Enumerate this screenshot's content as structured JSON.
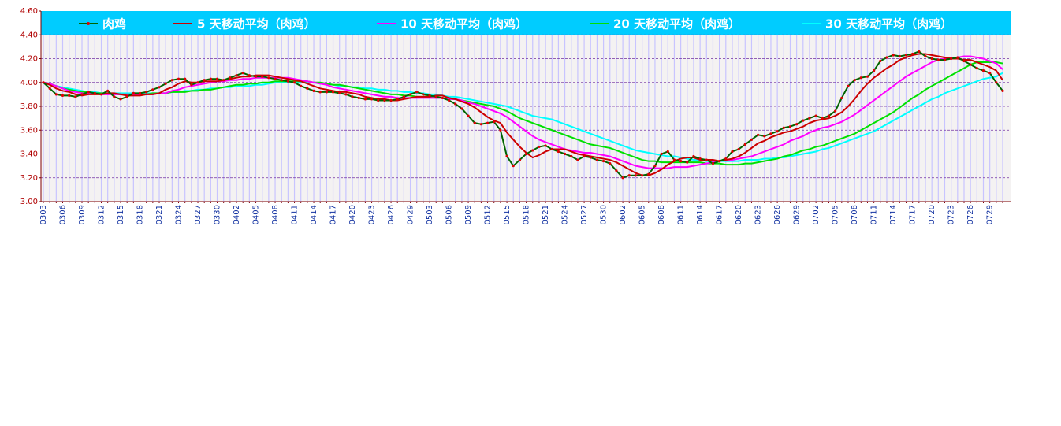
{
  "chart_data": {
    "type": "line",
    "legend": "top",
    "grid": true,
    "ylim": [
      3,
      4.6
    ],
    "yticks": [
      {
        "value": 3,
        "label": "3.00"
      },
      {
        "value": 3.2,
        "label": "3.20"
      },
      {
        "value": 3.4,
        "label": "3.40"
      },
      {
        "value": 3.6,
        "label": "3.60"
      },
      {
        "value": 3.8,
        "label": "3.80"
      },
      {
        "value": 4,
        "label": "4.00"
      },
      {
        "value": 4.2,
        "label": "4.20"
      },
      {
        "value": 4.4,
        "label": "4.40"
      },
      {
        "value": 4.6,
        "label": "4.60"
      }
    ],
    "categories": [
      "0303",
      null,
      null,
      "0306",
      null,
      null,
      "0309",
      null,
      null,
      "0312",
      null,
      null,
      "0315",
      null,
      null,
      "0318",
      null,
      null,
      "0321",
      null,
      null,
      "0324",
      null,
      null,
      "0327",
      null,
      null,
      "0330",
      null,
      null,
      "0402",
      null,
      null,
      "0405",
      null,
      null,
      "0408",
      null,
      null,
      "0411",
      null,
      null,
      "0414",
      null,
      null,
      "0417",
      null,
      null,
      "0420",
      null,
      null,
      "0423",
      null,
      null,
      "0426",
      null,
      null,
      "0429",
      null,
      null,
      "0503",
      null,
      null,
      "0506",
      null,
      null,
      "0509",
      null,
      null,
      "0512",
      null,
      null,
      "0515",
      null,
      null,
      "0518",
      null,
      null,
      "0521",
      null,
      null,
      "0524",
      null,
      null,
      "0527",
      null,
      null,
      "0530",
      null,
      null,
      "0602",
      null,
      null,
      "0605",
      null,
      null,
      "0608",
      null,
      null,
      "0611",
      null,
      null,
      "0614",
      null,
      null,
      "0617",
      null,
      null,
      "0620",
      null,
      null,
      "0623",
      null,
      null,
      "0626",
      null,
      null,
      "0629",
      null,
      null,
      "0702",
      null,
      null,
      "0705",
      null,
      null,
      "0708",
      null,
      null,
      "0711",
      null,
      null,
      "0714",
      null,
      null,
      "0717",
      null,
      null,
      "0720",
      null,
      null,
      "0723",
      null,
      null,
      "0726",
      null,
      null,
      "0729",
      null,
      null
    ],
    "series": [
      {
        "name": "肉鸡",
        "color": "#006400",
        "marker_color": "#e00000",
        "values": [
          4.0,
          3.95,
          3.9,
          3.89,
          3.89,
          3.88,
          3.9,
          3.92,
          3.91,
          3.9,
          3.93,
          3.88,
          3.86,
          3.88,
          3.91,
          3.91,
          3.92,
          3.94,
          3.96,
          3.99,
          4.02,
          4.03,
          4.03,
          3.98,
          4.0,
          4.02,
          4.03,
          4.03,
          4.02,
          4.04,
          4.06,
          4.08,
          4.06,
          4.05,
          4.05,
          4.04,
          4.03,
          4.02,
          4.01,
          4.0,
          3.97,
          3.95,
          3.93,
          3.92,
          3.92,
          3.92,
          3.91,
          3.9,
          3.88,
          3.87,
          3.86,
          3.86,
          3.85,
          3.85,
          3.85,
          3.86,
          3.88,
          3.9,
          3.92,
          3.9,
          3.89,
          3.88,
          3.87,
          3.85,
          3.82,
          3.78,
          3.72,
          3.66,
          3.65,
          3.66,
          3.67,
          3.6,
          3.38,
          3.3,
          3.35,
          3.4,
          3.43,
          3.46,
          3.47,
          3.44,
          3.42,
          3.4,
          3.38,
          3.35,
          3.38,
          3.37,
          3.35,
          3.34,
          3.32,
          3.26,
          3.2,
          3.22,
          3.22,
          3.22,
          3.23,
          3.3,
          3.4,
          3.42,
          3.35,
          3.34,
          3.33,
          3.38,
          3.36,
          3.35,
          3.32,
          3.34,
          3.36,
          3.42,
          3.44,
          3.48,
          3.52,
          3.56,
          3.55,
          3.57,
          3.59,
          3.62,
          3.63,
          3.65,
          3.68,
          3.7,
          3.72,
          3.7,
          3.72,
          3.76,
          3.87,
          3.97,
          4.02,
          4.04,
          4.05,
          4.1,
          4.18,
          4.21,
          4.23,
          4.22,
          4.23,
          4.24,
          4.26,
          4.22,
          4.2,
          4.19,
          4.19,
          4.2,
          4.21,
          4.18,
          4.15,
          4.12,
          4.1,
          4.08,
          4.0,
          3.93
        ]
      },
      {
        "name": "5 天移动平均（肉鸡）",
        "color": "#cc0000",
        "values": [
          4.0,
          3.98,
          3.95,
          3.93,
          3.92,
          3.9,
          3.89,
          3.9,
          3.9,
          3.9,
          3.91,
          3.91,
          3.9,
          3.89,
          3.89,
          3.89,
          3.9,
          3.9,
          3.91,
          3.94,
          3.96,
          3.99,
          4.01,
          4.0,
          4.0,
          4.01,
          4.01,
          4.01,
          4.02,
          4.03,
          4.04,
          4.05,
          4.05,
          4.06,
          4.06,
          4.06,
          4.05,
          4.04,
          4.03,
          4.02,
          4.01,
          3.99,
          3.97,
          3.95,
          3.94,
          3.93,
          3.92,
          3.92,
          3.91,
          3.9,
          3.88,
          3.87,
          3.86,
          3.86,
          3.85,
          3.85,
          3.86,
          3.87,
          3.88,
          3.88,
          3.88,
          3.89,
          3.89,
          3.87,
          3.86,
          3.84,
          3.82,
          3.79,
          3.75,
          3.71,
          3.68,
          3.66,
          3.58,
          3.52,
          3.46,
          3.41,
          3.37,
          3.39,
          3.42,
          3.44,
          3.44,
          3.44,
          3.42,
          3.4,
          3.39,
          3.38,
          3.37,
          3.36,
          3.35,
          3.33,
          3.3,
          3.27,
          3.24,
          3.22,
          3.22,
          3.24,
          3.27,
          3.31,
          3.34,
          3.36,
          3.37,
          3.37,
          3.35,
          3.35,
          3.35,
          3.34,
          3.35,
          3.36,
          3.38,
          3.41,
          3.45,
          3.49,
          3.51,
          3.54,
          3.56,
          3.58,
          3.59,
          3.61,
          3.63,
          3.66,
          3.68,
          3.69,
          3.7,
          3.72,
          3.75,
          3.8,
          3.86,
          3.93,
          3.99,
          4.04,
          4.08,
          4.12,
          4.15,
          4.19,
          4.21,
          4.23,
          4.24,
          4.24,
          4.23,
          4.22,
          4.21,
          4.2,
          4.2,
          4.19,
          4.19,
          4.17,
          4.15,
          4.13,
          4.1,
          4.02
        ]
      },
      {
        "name": "10 天移动平均（肉鸡）",
        "color": "#ff00ff",
        "values": [
          4.0,
          3.99,
          3.97,
          3.95,
          3.93,
          3.92,
          3.91,
          3.91,
          3.91,
          3.9,
          3.9,
          3.9,
          3.9,
          3.9,
          3.9,
          3.9,
          3.9,
          3.9,
          3.91,
          3.91,
          3.93,
          3.94,
          3.96,
          3.97,
          3.98,
          3.99,
          4.0,
          4.01,
          4.01,
          4.02,
          4.02,
          4.03,
          4.03,
          4.04,
          4.04,
          4.04,
          4.04,
          4.04,
          4.04,
          4.03,
          4.02,
          4.01,
          4.0,
          3.99,
          3.98,
          3.96,
          3.95,
          3.94,
          3.93,
          3.92,
          3.91,
          3.9,
          3.89,
          3.88,
          3.88,
          3.87,
          3.87,
          3.87,
          3.87,
          3.87,
          3.87,
          3.87,
          3.87,
          3.86,
          3.86,
          3.85,
          3.83,
          3.82,
          3.8,
          3.78,
          3.76,
          3.74,
          3.71,
          3.67,
          3.63,
          3.59,
          3.55,
          3.52,
          3.5,
          3.48,
          3.46,
          3.44,
          3.43,
          3.42,
          3.41,
          3.41,
          3.4,
          3.39,
          3.38,
          3.36,
          3.34,
          3.32,
          3.3,
          3.29,
          3.28,
          3.28,
          3.28,
          3.28,
          3.29,
          3.29,
          3.29,
          3.3,
          3.31,
          3.32,
          3.33,
          3.34,
          3.35,
          3.35,
          3.36,
          3.37,
          3.38,
          3.4,
          3.42,
          3.44,
          3.46,
          3.48,
          3.51,
          3.53,
          3.55,
          3.58,
          3.6,
          3.62,
          3.63,
          3.65,
          3.67,
          3.7,
          3.73,
          3.77,
          3.81,
          3.85,
          3.89,
          3.93,
          3.97,
          4.01,
          4.05,
          4.08,
          4.11,
          4.14,
          4.17,
          4.19,
          4.2,
          4.21,
          4.21,
          4.22,
          4.22,
          4.21,
          4.2,
          4.18,
          4.16,
          4.11
        ]
      },
      {
        "name": "20 天移动平均（肉鸡）",
        "color": "#00e000",
        "values": [
          4.0,
          3.99,
          3.97,
          3.95,
          3.94,
          3.93,
          3.92,
          3.92,
          3.91,
          3.91,
          3.91,
          3.9,
          3.9,
          3.9,
          3.9,
          3.9,
          3.9,
          3.91,
          3.91,
          3.91,
          3.92,
          3.92,
          3.92,
          3.93,
          3.93,
          3.94,
          3.94,
          3.95,
          3.96,
          3.97,
          3.98,
          3.98,
          3.99,
          3.99,
          4.0,
          4.0,
          4.01,
          4.01,
          4.01,
          4.01,
          4.01,
          4.01,
          4.0,
          4.0,
          3.99,
          3.98,
          3.98,
          3.97,
          3.96,
          3.95,
          3.94,
          3.93,
          3.92,
          3.91,
          3.9,
          3.9,
          3.89,
          3.89,
          3.88,
          3.88,
          3.88,
          3.87,
          3.87,
          3.86,
          3.86,
          3.85,
          3.84,
          3.83,
          3.82,
          3.81,
          3.8,
          3.78,
          3.76,
          3.73,
          3.7,
          3.68,
          3.66,
          3.64,
          3.62,
          3.6,
          3.58,
          3.56,
          3.54,
          3.52,
          3.5,
          3.48,
          3.47,
          3.46,
          3.45,
          3.43,
          3.41,
          3.39,
          3.37,
          3.35,
          3.34,
          3.34,
          3.33,
          3.33,
          3.33,
          3.33,
          3.33,
          3.33,
          3.33,
          3.32,
          3.32,
          3.32,
          3.31,
          3.31,
          3.31,
          3.32,
          3.32,
          3.33,
          3.34,
          3.35,
          3.36,
          3.38,
          3.39,
          3.41,
          3.43,
          3.44,
          3.46,
          3.47,
          3.49,
          3.51,
          3.53,
          3.55,
          3.57,
          3.6,
          3.63,
          3.66,
          3.69,
          3.72,
          3.75,
          3.79,
          3.83,
          3.87,
          3.9,
          3.94,
          3.97,
          4.0,
          4.03,
          4.06,
          4.09,
          4.12,
          4.15,
          4.17,
          4.17,
          4.17,
          4.17,
          4.16
        ]
      },
      {
        "name": "30 天移动平均（肉鸡）",
        "color": "#00ffff",
        "values": [
          4.0,
          3.99,
          3.97,
          3.96,
          3.95,
          3.94,
          3.93,
          3.92,
          3.92,
          3.91,
          3.91,
          3.91,
          3.91,
          3.91,
          3.91,
          3.91,
          3.91,
          3.91,
          3.91,
          3.91,
          3.92,
          3.92,
          3.93,
          3.93,
          3.94,
          3.94,
          3.95,
          3.95,
          3.96,
          3.96,
          3.97,
          3.97,
          3.97,
          3.98,
          3.98,
          3.99,
          4.0,
          4.0,
          4.0,
          4.0,
          4.0,
          4.0,
          4.0,
          3.99,
          3.99,
          3.98,
          3.97,
          3.97,
          3.96,
          3.96,
          3.95,
          3.95,
          3.94,
          3.94,
          3.93,
          3.93,
          3.92,
          3.92,
          3.91,
          3.91,
          3.9,
          3.9,
          3.89,
          3.88,
          3.88,
          3.87,
          3.86,
          3.85,
          3.84,
          3.83,
          3.82,
          3.81,
          3.8,
          3.78,
          3.76,
          3.74,
          3.72,
          3.71,
          3.7,
          3.69,
          3.67,
          3.65,
          3.63,
          3.61,
          3.59,
          3.57,
          3.55,
          3.53,
          3.51,
          3.49,
          3.47,
          3.45,
          3.43,
          3.42,
          3.41,
          3.4,
          3.39,
          3.38,
          3.38,
          3.37,
          3.36,
          3.35,
          3.35,
          3.34,
          3.34,
          3.34,
          3.34,
          3.34,
          3.34,
          3.35,
          3.35,
          3.35,
          3.36,
          3.36,
          3.37,
          3.37,
          3.38,
          3.39,
          3.4,
          3.41,
          3.42,
          3.44,
          3.45,
          3.47,
          3.49,
          3.51,
          3.53,
          3.55,
          3.57,
          3.59,
          3.62,
          3.65,
          3.68,
          3.71,
          3.74,
          3.77,
          3.8,
          3.83,
          3.86,
          3.88,
          3.91,
          3.93,
          3.95,
          3.97,
          3.99,
          4.01,
          4.03,
          4.04,
          4.05,
          4.08
        ]
      }
    ]
  }
}
